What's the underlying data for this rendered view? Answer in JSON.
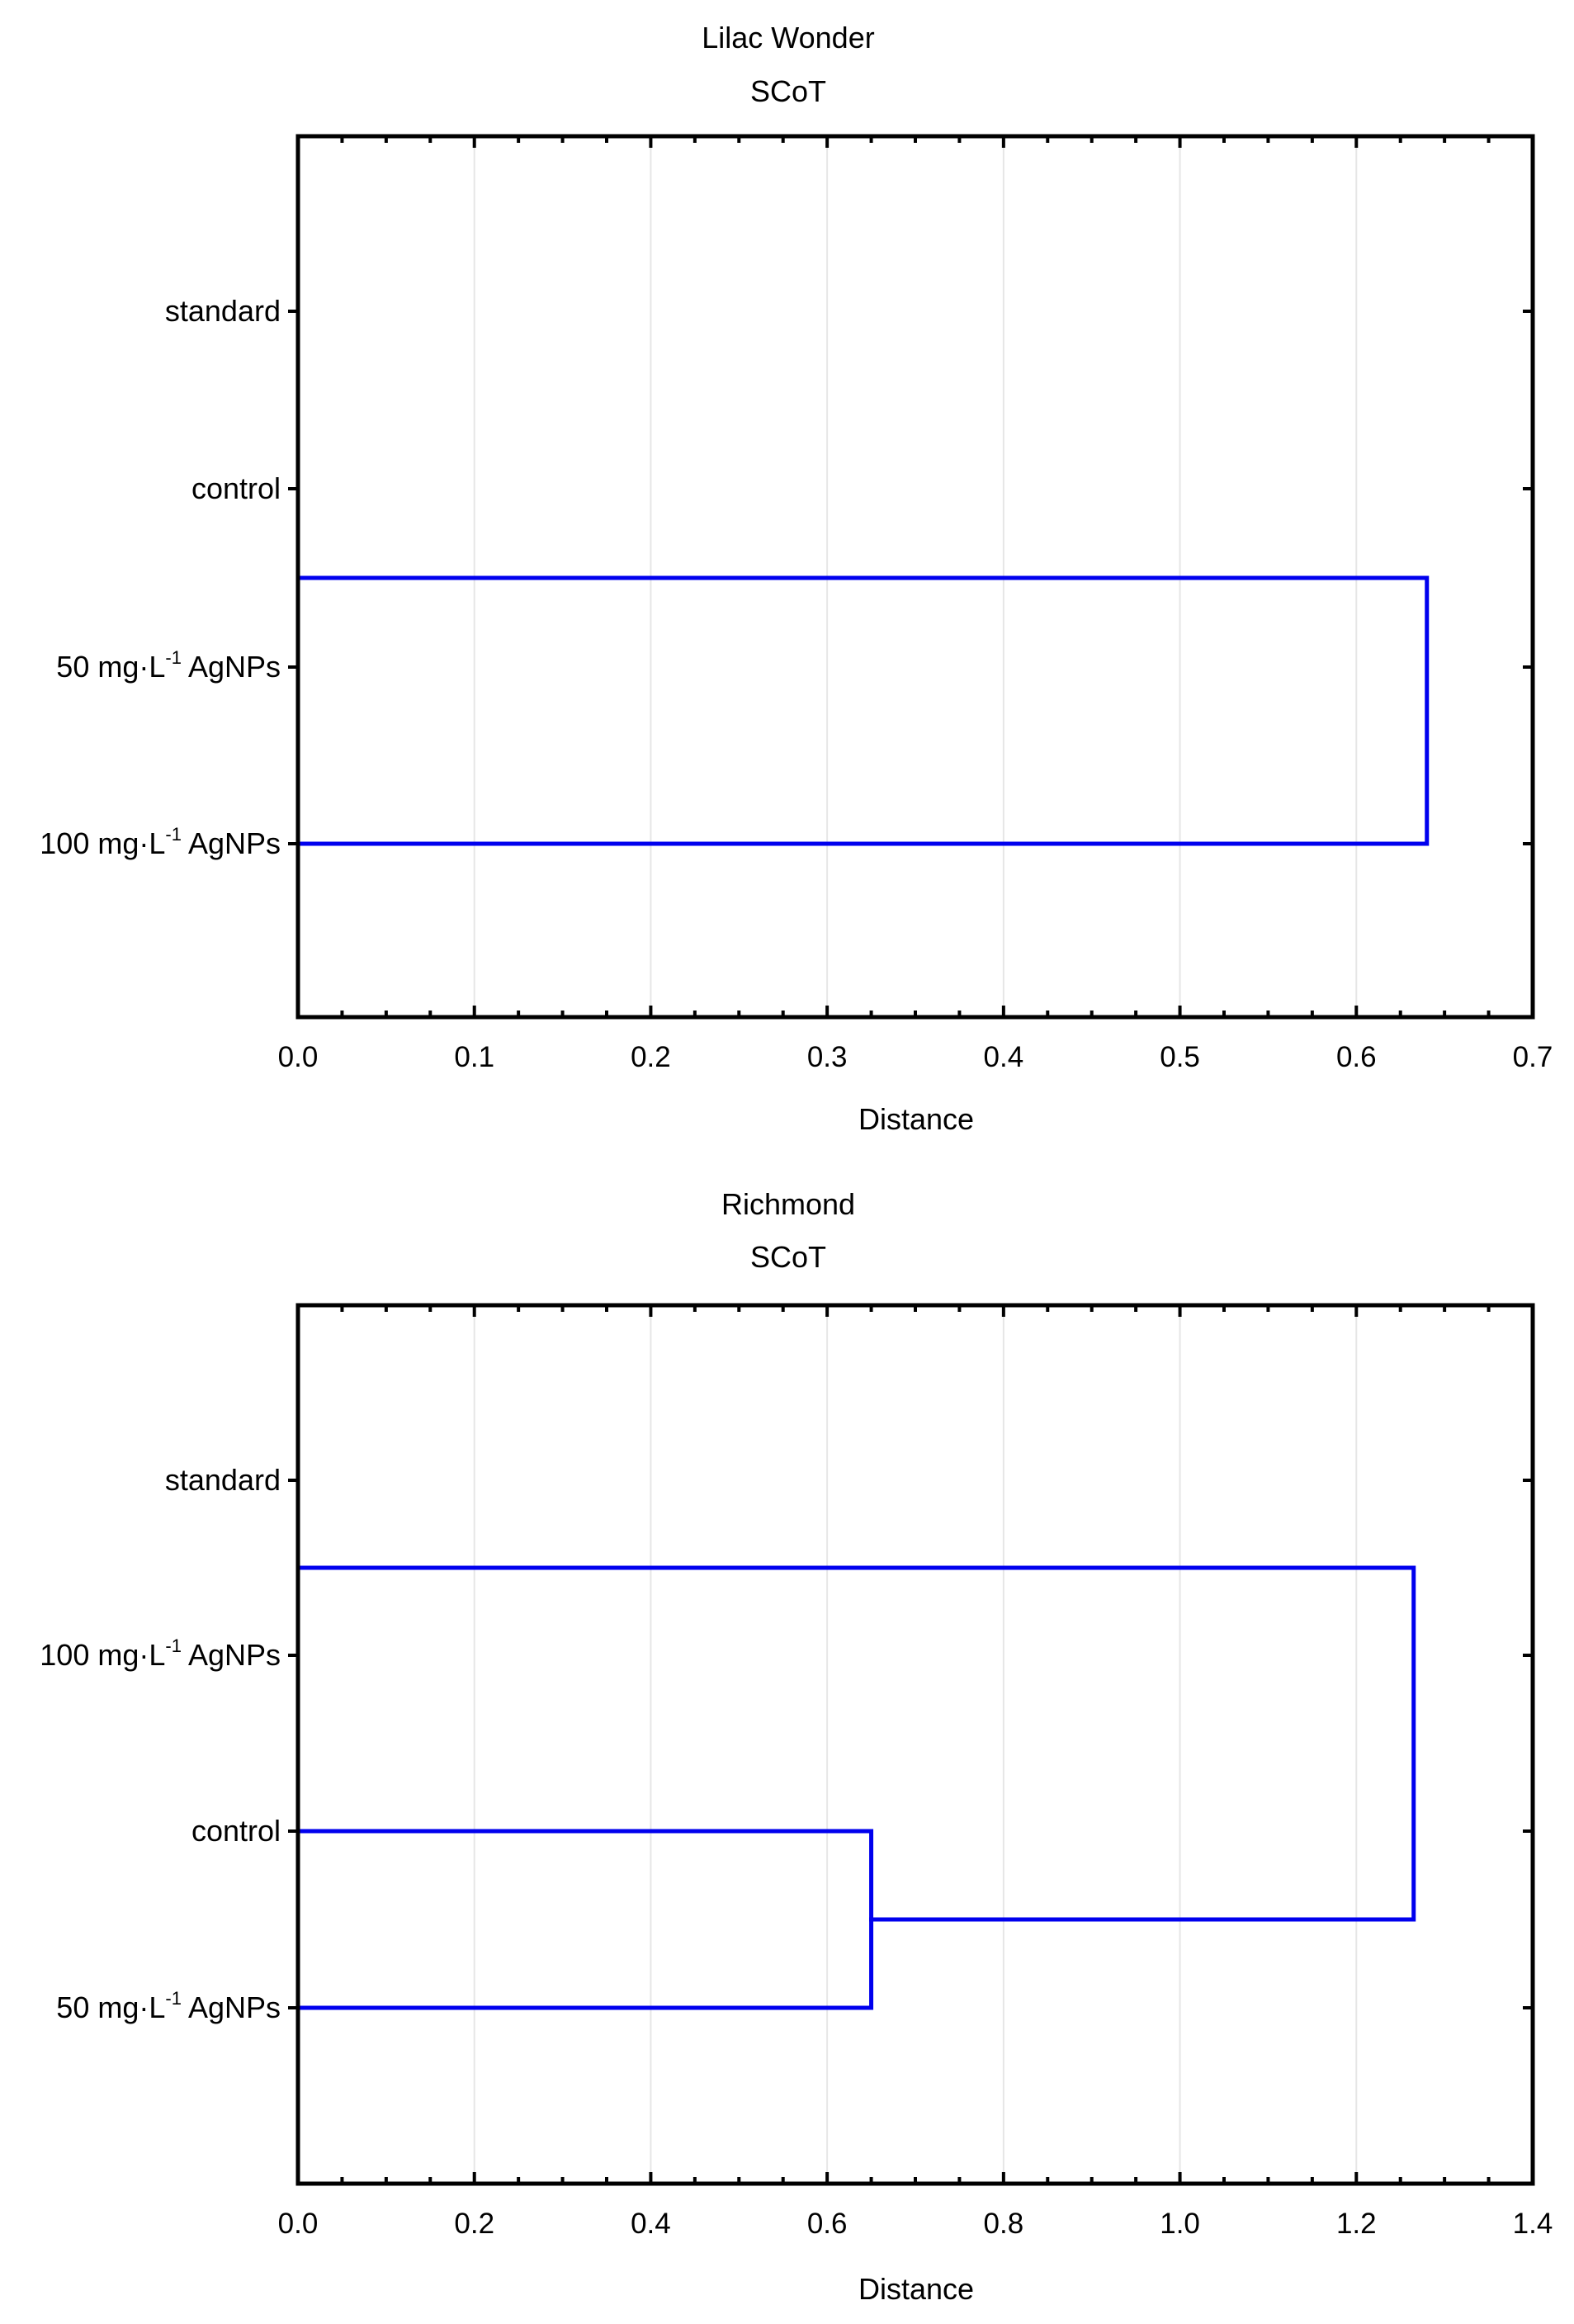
{
  "chart_data": [
    {
      "type": "dendrogram",
      "title": "Lilac Wonder",
      "subtitle": "SCoT",
      "xlabel": "Distance",
      "ylabel": "",
      "xlim": [
        0,
        0.7
      ],
      "xticks": [
        "0.0",
        "0.1",
        "0.2",
        "0.3",
        "0.4",
        "0.5",
        "0.6",
        "0.7"
      ],
      "grid": true,
      "line_color": "#0000ee",
      "categories": [
        {
          "pre": "standard",
          "sup": "",
          "post": ""
        },
        {
          "pre": "control",
          "sup": "",
          "post": ""
        },
        {
          "pre": "50 mg·L",
          "sup": "-1",
          "post": " AgNPs"
        },
        {
          "pre": "100 mg·L",
          "sup": "-1",
          "post": " AgNPs"
        }
      ],
      "links": [
        {
          "a": 1.5,
          "b": 3,
          "distance": 0.64
        }
      ]
    },
    {
      "type": "dendrogram",
      "title": "Richmond",
      "subtitle": "SCoT",
      "xlabel": "Distance",
      "ylabel": "",
      "xlim": [
        0,
        1.4
      ],
      "xticks": [
        "0.0",
        "0.2",
        "0.4",
        "0.6",
        "0.8",
        "1.0",
        "1.2",
        "1.4"
      ],
      "grid": true,
      "line_color": "#0000ee",
      "categories": [
        {
          "pre": "standard",
          "sup": "",
          "post": ""
        },
        {
          "pre": "100 mg·L",
          "sup": "-1",
          "post": " AgNPs"
        },
        {
          "pre": "control",
          "sup": "",
          "post": ""
        },
        {
          "pre": "50 mg·L",
          "sup": "-1",
          "post": " AgNPs"
        }
      ],
      "links": [
        {
          "a": 2,
          "b": 3,
          "distance": 0.65
        },
        {
          "a": 0.5,
          "b": 2.5,
          "distance": 1.265
        }
      ]
    }
  ]
}
